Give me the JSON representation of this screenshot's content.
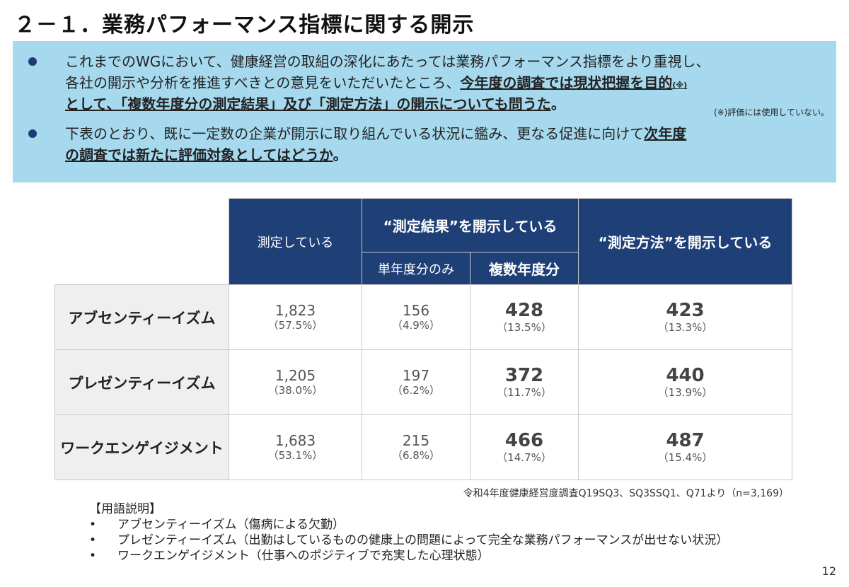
{
  "title": "２－１．業務パフォーマンス指標に関する開示",
  "summary": {
    "b1_l1": "これまでのWGにおいて、健康経営の取組の深化にあたっては業務パフォーマンス指標をより重視し、",
    "b1_l2a": "各社の開示や分析を推進すべきとの意見をいただいたところ、",
    "b1_l2b": "今年度の調査では現状把握を目的",
    "b1_l2c": "(※)",
    "b1_l3a": "として、「複数年度分の測定結果」及び「測定方法」の開示についても問うた",
    "b1_l3b": "。",
    "note": "(※)評価には使用していない。",
    "b2_l1a": "下表のとおり、既に一定数の企業が開示に取り組んでいる状況に鑑み、更なる促進に向けて",
    "b2_l1b": "次年度",
    "b2_l2a": "の調査では新たに評価対象としてはどうか",
    "b2_l2b": "。"
  },
  "table": {
    "col_measuring": "測定している",
    "col_results_group": "“測定結果”を開示している",
    "col_single": "単年度分のみ",
    "col_multi": "複数年度分",
    "col_method": "“測定方法”を開示している",
    "rows": [
      {
        "label": "アブセンティーイズム",
        "measuring": "1,823",
        "measuring_pct": "（57.5%）",
        "single": "156",
        "single_pct": "（4.9%）",
        "multi": "428",
        "multi_pct": "（13.5%）",
        "method": "423",
        "method_pct": "（13.3%）"
      },
      {
        "label": "プレゼンティーイズム",
        "measuring": "1,205",
        "measuring_pct": "（38.0%）",
        "single": "197",
        "single_pct": "（6.2%）",
        "multi": "372",
        "multi_pct": "（11.7%）",
        "method": "440",
        "method_pct": "（13.9%）"
      },
      {
        "label": "ワークエンゲイジメント",
        "measuring": "1,683",
        "measuring_pct": "（53.1%）",
        "single": "215",
        "single_pct": "（6.8%）",
        "multi": "466",
        "multi_pct": "（14.7%）",
        "method": "487",
        "method_pct": "（15.4%）"
      }
    ]
  },
  "source": "令和4年度健康経営度調査Q19SQ3、SQ3SSQ1、Q71より（n=3,169）",
  "terms": {
    "heading": "【用語説明】",
    "items": [
      "アブセンティーイズム（傷病による欠勤）",
      "プレゼンティーイズム（出勤はしているものの健康上の問題によって完全な業務パフォーマンスが出せない状況）",
      "ワークエンゲイジメント（仕事へのポジティブで充実した心理状態）"
    ]
  },
  "page_number": "12",
  "colors": {
    "header_bg": "#1f3f77",
    "summary_bg": "#a6d9ee",
    "bullet": "#1f3b73",
    "row_label_bg": "#efefef"
  }
}
